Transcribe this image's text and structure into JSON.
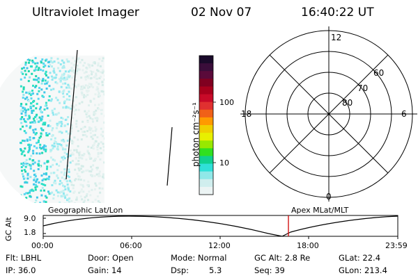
{
  "header": {
    "title": "Ultraviolet Imager",
    "date": "02 Nov 07",
    "time": "16:40:22 UT"
  },
  "colorbar": {
    "unit_label": "photon cm⁻²s⁻¹",
    "tick_labels": [
      "100",
      "10"
    ],
    "colors": [
      "#1a0a2a",
      "#3a0d3a",
      "#5a0a3a",
      "#800020",
      "#a8001c",
      "#c80a28",
      "#e03030",
      "#f06018",
      "#ff9a00",
      "#f0d000",
      "#e8f000",
      "#98e800",
      "#30e020",
      "#10d090",
      "#30e0d8",
      "#90e8e8",
      "#d0eeee",
      "#ecf4f4"
    ]
  },
  "polar_plot": {
    "mlt_labels": {
      "top": "12",
      "left": "18",
      "right": "6",
      "bottom": "0"
    },
    "lat_labels": [
      "60",
      "70",
      "80"
    ]
  },
  "timeline": {
    "axis_label": "GC Alt",
    "tick_top": "9.0",
    "tick_bottom": "1.8",
    "left_title": "Geographic Lat/Lon",
    "right_title": "Apex MLat/MLT",
    "time_ticks": [
      "00:00",
      "06:00",
      "12:00",
      "18:00",
      "23:59"
    ],
    "current_marker_color": "#d00000"
  },
  "info": {
    "flt": "Flt: LBHL",
    "ip": "IP: 36.0",
    "door": "Door: Open",
    "gain": "Gain: 14",
    "mode": "Mode: Normal",
    "dsp_label": "Dsp:",
    "dsp_value": "5.3",
    "gcalt": "GC Alt: 2.8 Re",
    "seq": "Seq: 39",
    "glat": "GLat: 22.4",
    "glon": "GLon: 213.4"
  }
}
